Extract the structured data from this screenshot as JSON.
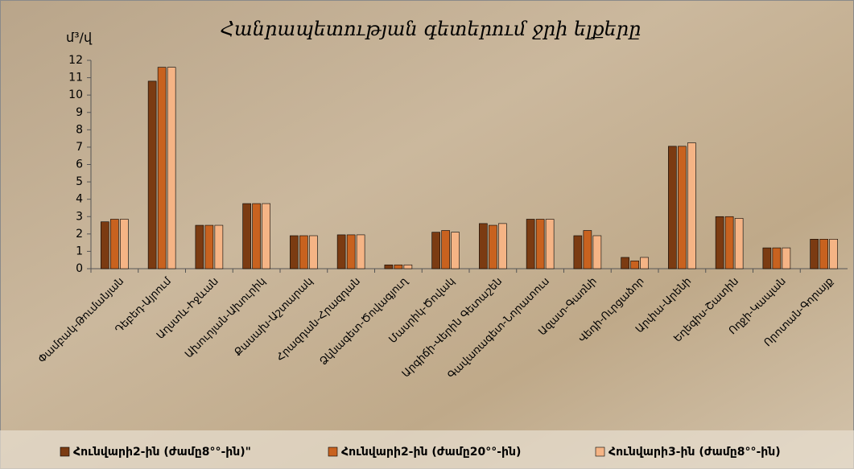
{
  "chart_data": {
    "type": "bar",
    "title": "Հանրապետության գետերում ջրի ելքերը",
    "y_label": "մ³/վ",
    "categories": [
      "Փամբակ-Թումանյան",
      "Դեբեդ-Այրում",
      "Աղստև-Իջևան",
      "Ախուրյան-Ախուրիկ",
      "Քասախ-Աշտարակ",
      "Հրազդան-Հրազդան",
      "Ձկնագետ-Ծովագյուղ",
      "Մասրիկ-Ծովակ",
      "Արգիճի-Վերին Գետաշեն",
      "Գավառագետ-Նորատուս",
      "Ազատ-Գառնի",
      "Վեդի-Ուրցաձոր",
      "Արփա-Արենի",
      "Եղեգիս-Շատին",
      "Ողջի-Կապան",
      "Որոտան-Գորայք"
    ],
    "series": [
      {
        "name": "Հունվարի2-ին (ժամը8°°-ին)\"",
        "color": "#7b3b12",
        "values": [
          2.7,
          10.8,
          2.5,
          3.75,
          1.9,
          1.95,
          0.22,
          2.1,
          2.6,
          2.85,
          1.9,
          0.65,
          7.05,
          3.0,
          1.2,
          1.7
        ]
      },
      {
        "name": "Հունվարի2-ին (ժամը20°°-ին)",
        "color": "#c8621f",
        "values": [
          2.85,
          11.6,
          2.5,
          3.75,
          1.9,
          1.95,
          0.22,
          2.2,
          2.5,
          2.85,
          2.2,
          0.45,
          7.05,
          3.0,
          1.2,
          1.7
        ]
      },
      {
        "name": "Հունվարի3-ին (ժամը8°°-ին)",
        "color": "#f5b485",
        "values": [
          2.85,
          11.6,
          2.5,
          3.75,
          1.9,
          1.95,
          0.22,
          2.1,
          2.6,
          2.85,
          1.9,
          0.65,
          7.25,
          2.9,
          1.2,
          1.7
        ]
      }
    ],
    "ylim": [
      0,
      12
    ],
    "yticks": [
      0,
      1,
      2,
      3,
      4,
      5,
      6,
      7,
      8,
      9,
      10,
      11,
      12
    ]
  }
}
